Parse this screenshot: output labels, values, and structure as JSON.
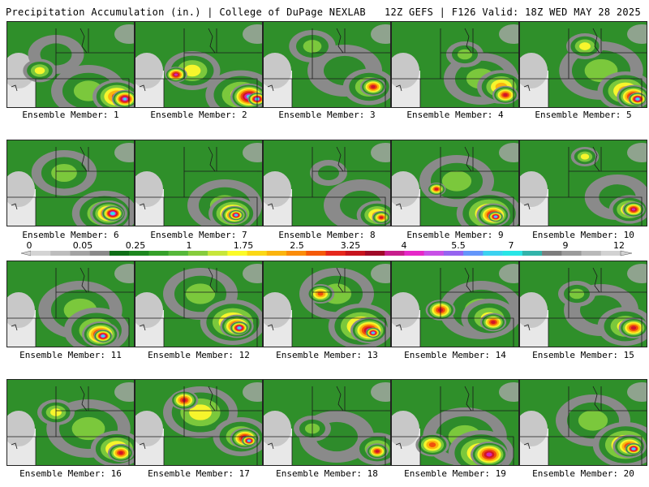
{
  "header": {
    "left_title": "Precipitation Accumulation (in.) | College of DuPage NEXLAB",
    "right_title": "12Z GEFS | F126 Valid: 18Z WED MAY 28 2025"
  },
  "panels": [
    {
      "label": "Ensemble Member: 1"
    },
    {
      "label": "Ensemble Member: 2"
    },
    {
      "label": "Ensemble Member: 3"
    },
    {
      "label": "Ensemble Member: 4"
    },
    {
      "label": "Ensemble Member: 5"
    },
    {
      "label": "Ensemble Member: 6"
    },
    {
      "label": "Ensemble Member: 7"
    },
    {
      "label": "Ensemble Member: 8"
    },
    {
      "label": "Ensemble Member: 9"
    },
    {
      "label": "Ensemble Member: 10"
    },
    {
      "label": "Ensemble Member: 11"
    },
    {
      "label": "Ensemble Member: 12"
    },
    {
      "label": "Ensemble Member: 13"
    },
    {
      "label": "Ensemble Member: 14"
    },
    {
      "label": "Ensemble Member: 15"
    },
    {
      "label": "Ensemble Member: 16"
    },
    {
      "label": "Ensemble Member: 17"
    },
    {
      "label": "Ensemble Member: 18"
    },
    {
      "label": "Ensemble Member: 19"
    },
    {
      "label": "Ensemble Member: 20"
    }
  ],
  "colorbar": {
    "tick_labels": [
      "0",
      "0.05",
      "0.25",
      "1",
      "1.75",
      "2.5",
      "3.25",
      "4",
      "5.5",
      "7",
      "9",
      "12"
    ],
    "colors": [
      "#d4d4d4",
      "#bdbdbd",
      "#a3a3a3",
      "#8a8a8a",
      "#0f6e17",
      "#1d871f",
      "#35a12a",
      "#56b83a",
      "#86cc3c",
      "#c7e63a",
      "#fbfb28",
      "#fbd816",
      "#fbb40e",
      "#fb8c0a",
      "#f55a0a",
      "#e6281c",
      "#c8141e",
      "#a00a28",
      "#c81e8c",
      "#e628c8",
      "#c850e6",
      "#9664f0",
      "#6496fa",
      "#3cd2f0",
      "#28e6e6",
      "#32b4aa",
      "#7d7d7d",
      "#9b9b9b",
      "#b9b9b9",
      "#d2d2d2"
    ]
  }
}
